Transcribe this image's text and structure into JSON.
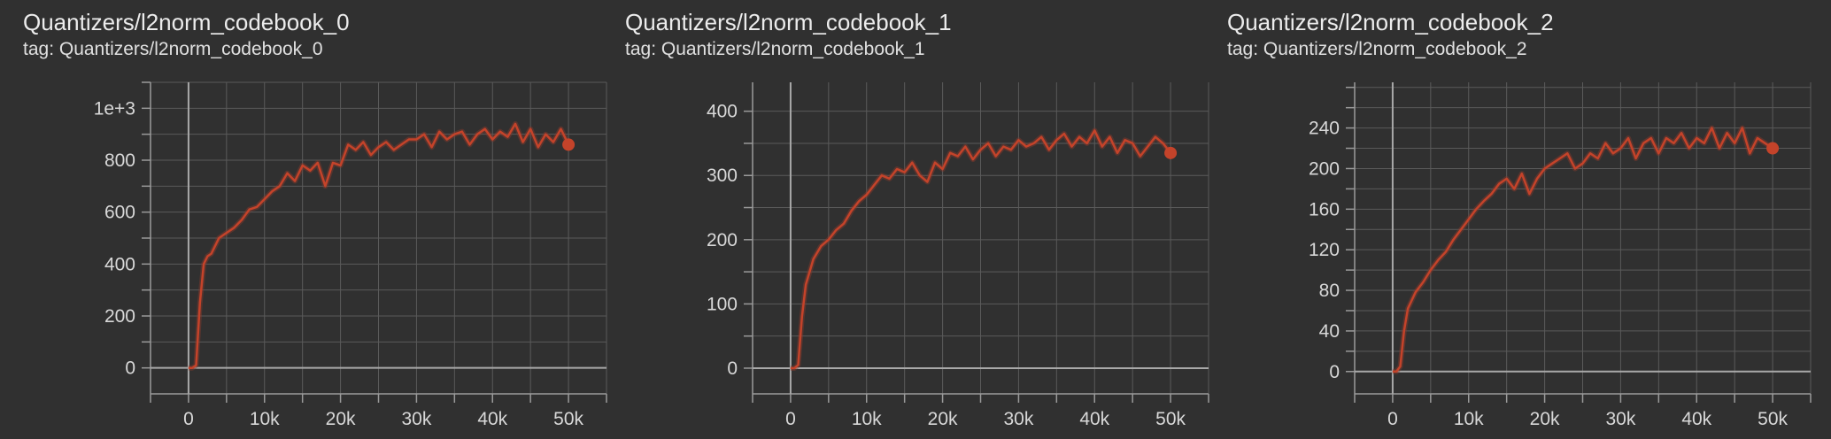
{
  "colors": {
    "background": "#303030",
    "grid": "#5a5a5a",
    "axis": "#9a9a9a",
    "zero_line": "#a8a8a8",
    "series": "#c4432a",
    "series_faint": "#8a3a2c",
    "text": "#e0e0e0"
  },
  "cards": [
    {
      "title": "Quantizers/l2norm_codebook_0",
      "tag": "tag: Quantizers/l2norm_codebook_0"
    },
    {
      "title": "Quantizers/l2norm_codebook_1",
      "tag": "tag: Quantizers/l2norm_codebook_1"
    },
    {
      "title": "Quantizers/l2norm_codebook_2",
      "tag": "tag: Quantizers/l2norm_codebook_2"
    }
  ],
  "chart_data": [
    {
      "type": "line",
      "title": "Quantizers/l2norm_codebook_0",
      "subtitle": "tag: Quantizers/l2norm_codebook_0",
      "xlim": [
        -5000,
        55000
      ],
      "ylim": [
        -100,
        1100
      ],
      "x_ticks": [
        0,
        10000,
        20000,
        30000,
        40000,
        50000
      ],
      "x_tick_labels": [
        "0",
        "10k",
        "20k",
        "30k",
        "40k",
        "50k"
      ],
      "y_ticks": [
        0,
        200,
        400,
        600,
        800,
        1000
      ],
      "y_tick_labels": [
        "0",
        "200",
        "400",
        "600",
        "800",
        "1e+3"
      ],
      "grid": true,
      "series": [
        {
          "x": [
            0,
            500,
            1000,
            1500,
            2000,
            2500,
            3000,
            4000,
            5000,
            6000,
            7000,
            8000,
            9000,
            10000,
            11000,
            12000,
            13000,
            14000,
            15000,
            16000,
            17000,
            18000,
            19000,
            20000,
            21000,
            22000,
            23000,
            24000,
            25000,
            26000,
            27000,
            28000,
            29000,
            30000,
            31000,
            32000,
            33000,
            34000,
            35000,
            36000,
            37000,
            38000,
            39000,
            40000,
            41000,
            42000,
            43000,
            44000,
            45000,
            46000,
            47000,
            48000,
            49000,
            50000
          ],
          "y": [
            0,
            0,
            10,
            250,
            400,
            430,
            440,
            500,
            520,
            540,
            570,
            610,
            620,
            650,
            680,
            700,
            750,
            720,
            780,
            760,
            790,
            700,
            790,
            780,
            860,
            840,
            870,
            820,
            850,
            870,
            840,
            860,
            880,
            880,
            900,
            850,
            910,
            880,
            900,
            910,
            860,
            900,
            920,
            880,
            910,
            890,
            940,
            870,
            920,
            850,
            900,
            870,
            920,
            860
          ]
        }
      ]
    },
    {
      "type": "line",
      "title": "Quantizers/l2norm_codebook_1",
      "subtitle": "tag: Quantizers/l2norm_codebook_1",
      "xlim": [
        -5000,
        55000
      ],
      "ylim": [
        -40,
        445
      ],
      "x_ticks": [
        0,
        10000,
        20000,
        30000,
        40000,
        50000
      ],
      "x_tick_labels": [
        "0",
        "10k",
        "20k",
        "30k",
        "40k",
        "50k"
      ],
      "y_ticks": [
        0,
        100,
        200,
        300,
        400
      ],
      "y_tick_labels": [
        "0",
        "100",
        "200",
        "300",
        "400"
      ],
      "grid": true,
      "series": [
        {
          "x": [
            0,
            500,
            1000,
            1500,
            2000,
            2500,
            3000,
            4000,
            5000,
            6000,
            7000,
            8000,
            9000,
            10000,
            11000,
            12000,
            13000,
            14000,
            15000,
            16000,
            17000,
            18000,
            19000,
            20000,
            21000,
            22000,
            23000,
            24000,
            25000,
            26000,
            27000,
            28000,
            29000,
            30000,
            31000,
            32000,
            33000,
            34000,
            35000,
            36000,
            37000,
            38000,
            39000,
            40000,
            41000,
            42000,
            43000,
            44000,
            45000,
            46000,
            47000,
            48000,
            49000,
            50000
          ],
          "y": [
            0,
            0,
            5,
            80,
            130,
            150,
            170,
            190,
            200,
            215,
            225,
            245,
            260,
            270,
            285,
            300,
            295,
            310,
            305,
            320,
            300,
            290,
            320,
            310,
            335,
            330,
            345,
            325,
            340,
            350,
            330,
            345,
            340,
            355,
            345,
            350,
            360,
            340,
            355,
            365,
            345,
            360,
            350,
            370,
            345,
            360,
            335,
            355,
            350,
            330,
            345,
            360,
            350,
            335
          ]
        }
      ]
    },
    {
      "type": "line",
      "title": "Quantizers/l2norm_codebook_2",
      "subtitle": "tag: Quantizers/l2norm_codebook_2",
      "xlim": [
        -5000,
        55000
      ],
      "ylim": [
        -22,
        285
      ],
      "x_ticks": [
        0,
        10000,
        20000,
        30000,
        40000,
        50000
      ],
      "x_tick_labels": [
        "0",
        "10k",
        "20k",
        "30k",
        "40k",
        "50k"
      ],
      "y_ticks": [
        0,
        40,
        80,
        120,
        160,
        200,
        240
      ],
      "y_tick_labels": [
        "0",
        "40",
        "80",
        "120",
        "160",
        "200",
        "240"
      ],
      "grid": true,
      "series": [
        {
          "x": [
            0,
            500,
            1000,
            1500,
            2000,
            2500,
            3000,
            4000,
            5000,
            6000,
            7000,
            8000,
            9000,
            10000,
            11000,
            12000,
            13000,
            14000,
            15000,
            16000,
            17000,
            18000,
            19000,
            20000,
            21000,
            22000,
            23000,
            24000,
            25000,
            26000,
            27000,
            28000,
            29000,
            30000,
            31000,
            32000,
            33000,
            34000,
            35000,
            36000,
            37000,
            38000,
            39000,
            40000,
            41000,
            42000,
            43000,
            44000,
            45000,
            46000,
            47000,
            48000,
            49000,
            50000
          ],
          "y": [
            0,
            0,
            5,
            40,
            62,
            70,
            78,
            88,
            100,
            110,
            118,
            130,
            140,
            150,
            160,
            168,
            175,
            185,
            190,
            180,
            195,
            175,
            190,
            200,
            205,
            210,
            215,
            200,
            205,
            215,
            210,
            225,
            215,
            220,
            230,
            210,
            225,
            230,
            215,
            230,
            225,
            235,
            220,
            230,
            225,
            240,
            220,
            235,
            225,
            240,
            215,
            230,
            225,
            220
          ]
        }
      ]
    }
  ]
}
